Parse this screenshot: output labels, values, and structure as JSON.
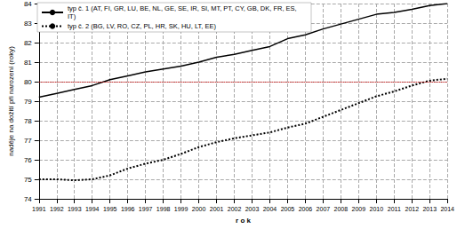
{
  "chart_data": {
    "type": "line",
    "x_label": "r o k",
    "y_label": "naděje na dožití při narození (roky)",
    "categories": [
      "1991",
      "1992",
      "1993",
      "1994",
      "1995",
      "1996",
      "1997",
      "1998",
      "1999",
      "2000",
      "2001",
      "2002",
      "2003",
      "2004",
      "2005",
      "2006",
      "2007",
      "2008",
      "2009",
      "2010",
      "2011",
      "2012",
      "2013",
      "2014"
    ],
    "series": [
      {
        "name": "typ č. 1 (AT, FI, GR, LU, BE, NL, GE, SE, IR, SI, MT, PT, CY, GB, DK, FR, ES, IT)",
        "color": "#000000",
        "line_style": "solid",
        "values": [
          79.2,
          79.4,
          79.6,
          79.8,
          80.1,
          80.3,
          80.5,
          80.65,
          80.8,
          81.0,
          81.25,
          81.4,
          81.6,
          81.8,
          82.2,
          82.4,
          82.7,
          82.95,
          83.2,
          83.45,
          83.55,
          83.7,
          83.9,
          84.0
        ]
      },
      {
        "name": "typ č. 2 (BG, LV, RO, CZ, PL, HR, SK, HU, LT, EE)",
        "color": "#000000",
        "line_style": "dotted",
        "values": [
          75.0,
          75.0,
          74.95,
          75.0,
          75.2,
          75.55,
          75.8,
          76.0,
          76.3,
          76.65,
          76.9,
          77.1,
          77.25,
          77.4,
          77.65,
          77.85,
          78.2,
          78.55,
          78.9,
          79.25,
          79.5,
          79.8,
          80.05,
          80.15
        ]
      }
    ],
    "hline": {
      "value": 80,
      "color": "#cc0000",
      "line_style": "dotted"
    },
    "ylim": [
      74,
      84
    ],
    "yticks": [
      74,
      75,
      76,
      77,
      78,
      79,
      80,
      81,
      82,
      83,
      84
    ],
    "grid": true,
    "legend": "upper left"
  }
}
